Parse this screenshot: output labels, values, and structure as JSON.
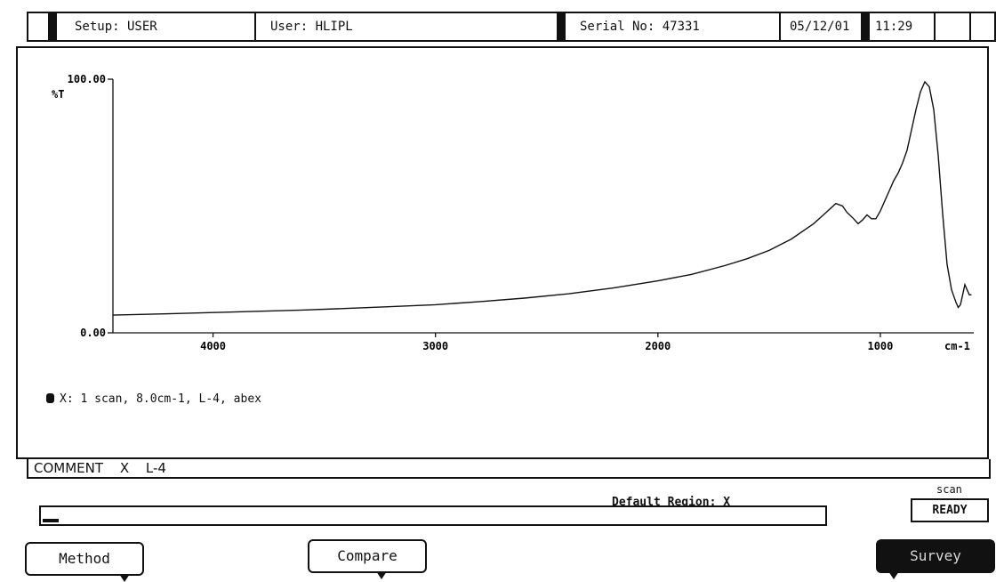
{
  "status_bar": {
    "setup": "Setup: USER",
    "user": "User: HLIPL",
    "serial": "Serial No: 47331",
    "date": "05/12/01",
    "time": "11:29"
  },
  "chart_data": {
    "type": "line",
    "xlabel": "cm-1",
    "ylabel": "%T",
    "xlim": [
      4450,
      580
    ],
    "ylim": [
      0,
      100
    ],
    "x_ticks": [
      4000,
      3000,
      2000,
      1000
    ],
    "y_ticks": [
      {
        "value": 0,
        "label": "0.00"
      },
      {
        "value": 100,
        "label": "100.00"
      }
    ],
    "grid": false,
    "series": [
      {
        "name": "X",
        "x": [
          4450,
          4200,
          4000,
          3800,
          3600,
          3400,
          3200,
          3000,
          2800,
          2600,
          2400,
          2200,
          2000,
          1850,
          1700,
          1600,
          1500,
          1400,
          1300,
          1250,
          1200,
          1170,
          1150,
          1120,
          1100,
          1080,
          1060,
          1040,
          1020,
          1000,
          980,
          960,
          940,
          920,
          900,
          880,
          860,
          840,
          820,
          800,
          780,
          760,
          740,
          720,
          700,
          680,
          660,
          650,
          640,
          630,
          620,
          610,
          600,
          590
        ],
        "y": [
          7,
          7.5,
          8,
          8.5,
          9,
          9.6,
          10.3,
          11.1,
          12.3,
          13.7,
          15.4,
          17.7,
          20.5,
          23,
          26.5,
          29.2,
          32.5,
          37,
          43,
          47,
          51,
          50,
          47.5,
          45,
          43,
          44.5,
          46.5,
          45,
          45,
          48,
          52,
          56,
          60,
          63,
          67,
          72,
          80,
          88,
          95,
          99,
          97,
          88,
          70,
          47,
          27,
          17,
          12,
          10,
          11,
          15,
          19,
          17,
          15,
          15
        ]
      }
    ]
  },
  "legend": {
    "text": "X: 1 scan, 8.0cm-1, L-4, abex"
  },
  "comment": {
    "label": "COMMENT",
    "id": "X",
    "value": "L-4"
  },
  "scan": {
    "region_label": "Default Region: X",
    "status_label": "scan",
    "status": "READY",
    "progress": 0.02
  },
  "softkeys": {
    "method": "Method",
    "compare": "Compare",
    "survey": "Survey"
  },
  "colors": {
    "ink": "#111111",
    "background": "#ffffff",
    "active_softkey_text": "#d8d8d8"
  }
}
